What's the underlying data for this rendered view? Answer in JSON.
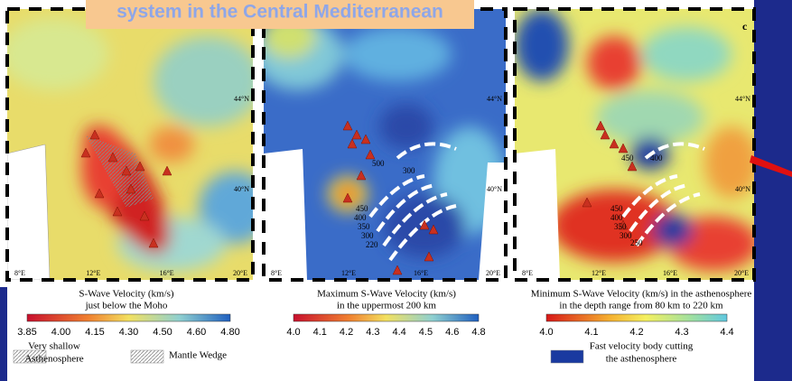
{
  "header": {
    "title": "system in the Central Mediterranean",
    "panel_label": "c"
  },
  "panels": [
    {
      "map": {
        "lon_labels": [
          "8°E",
          "12°E",
          "16°E",
          "20°E"
        ],
        "lat_labels": [
          "44°N",
          "40°N"
        ],
        "contour_labels": []
      },
      "caption": [
        "S-Wave Velocity (km/s)",
        "just below the Moho"
      ],
      "colorbar_ticks": [
        "3.85",
        "4.00",
        "4.15",
        "4.30",
        "4.50",
        "4.60",
        "4.80"
      ],
      "legend": [
        {
          "label": [
            "Very shallow",
            "Asthenosphere"
          ]
        },
        {
          "label": [
            "Mantle Wedge"
          ]
        }
      ]
    },
    {
      "map": {
        "lon_labels": [
          "8°E",
          "12°E",
          "16°E",
          "20°E"
        ],
        "lat_labels": [
          "44°N",
          "40°N"
        ],
        "contour_labels": [
          "500",
          "300",
          "450",
          "400",
          "350",
          "300",
          "220"
        ]
      },
      "caption": [
        "Maximum S-Wave Velocity  (km/s)",
        "in the uppermost 200 km"
      ],
      "colorbar_ticks": [
        "4.0",
        "4.1",
        "4.2",
        "4.3",
        "4.4",
        "4.5",
        "4.6",
        "4.8"
      ],
      "legend": []
    },
    {
      "map": {
        "lon_labels": [
          "8°E",
          "12°E",
          "16°E",
          "20°E"
        ],
        "lat_labels": [
          "44°N",
          "40°N"
        ],
        "contour_labels": [
          "450",
          "400",
          "450",
          "400",
          "350",
          "300",
          "250"
        ]
      },
      "caption": [
        "Minimum S-Wave Velocity  (km/s) in the asthenosphere",
        "in the depth range from 80 km to 220 km"
      ],
      "colorbar_ticks": [
        "4.0",
        "4.1",
        "4.2",
        "4.3",
        "4.4"
      ],
      "legend": [
        {
          "label": [
            "Fast velocity body cutting",
            "the asthenosphere"
          ]
        }
      ]
    }
  ]
}
